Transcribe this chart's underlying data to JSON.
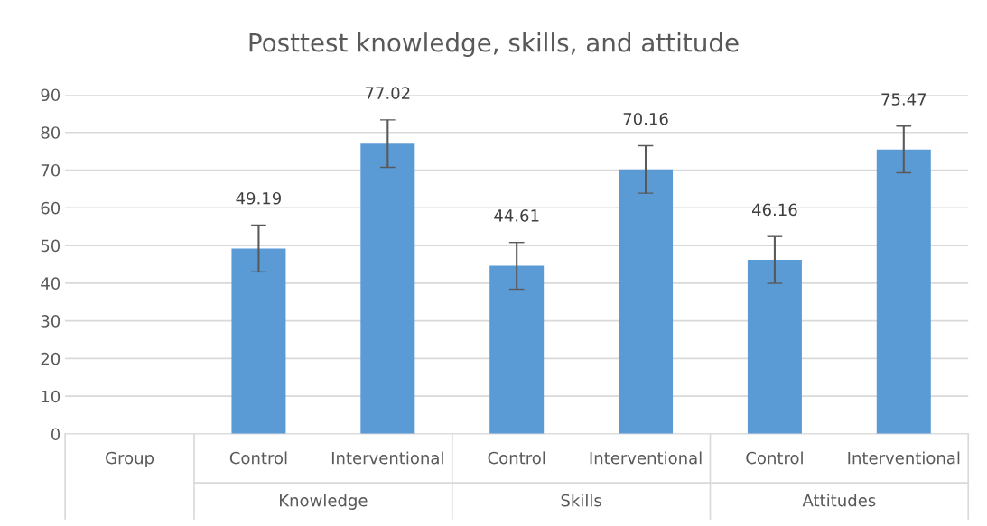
{
  "chart_data": {
    "type": "bar",
    "title": "Posttest knowledge, skills, and attitude",
    "categories": [
      "Group",
      "Control",
      "Interventional",
      "Control",
      "Interventional",
      "Control",
      "Interventional"
    ],
    "values": [
      null,
      49.19,
      77.02,
      44.61,
      70.16,
      46.16,
      75.47
    ],
    "errors": [
      null,
      6.2,
      6.3,
      6.2,
      6.3,
      6.2,
      6.2
    ],
    "color": "#5b9bd5",
    "annotations": [
      "Knowledge",
      "Skills",
      "Attitudes"
    ],
    "ylim": [
      0,
      90
    ],
    "yticks": [
      0,
      10,
      20,
      30,
      40,
      50,
      60,
      70,
      80,
      90
    ],
    "grid": "y",
    "data_labels": true
  }
}
